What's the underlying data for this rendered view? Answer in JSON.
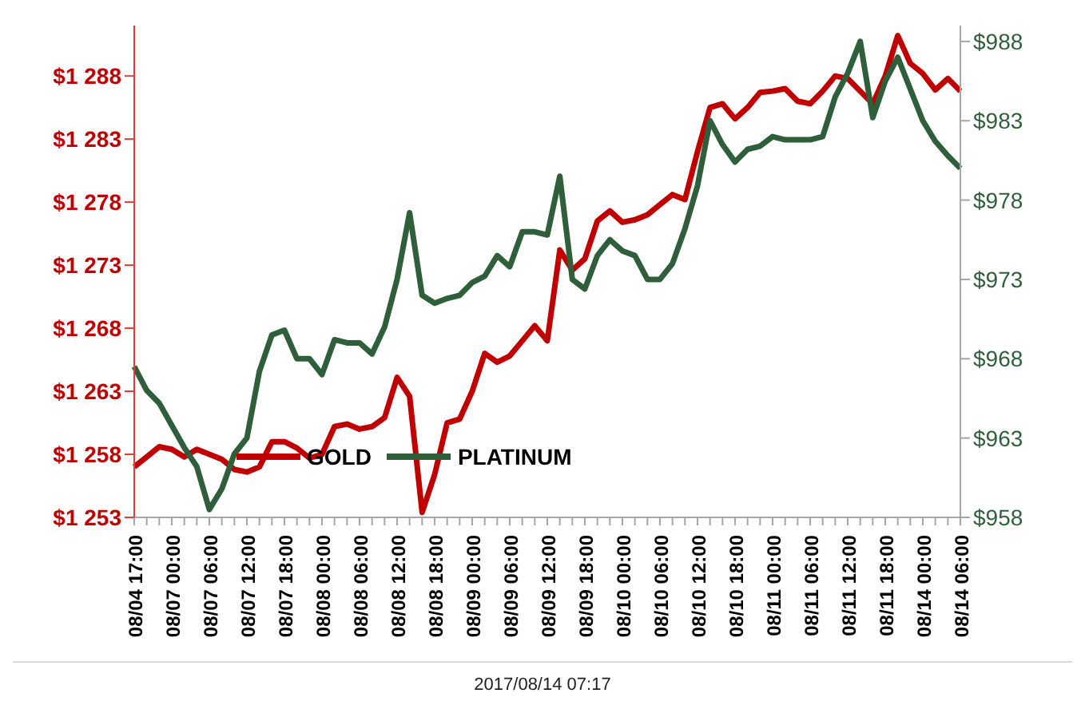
{
  "chart_data": {
    "type": "line",
    "categories": [
      "08/04 17:00",
      null,
      null,
      "08/07 00:00",
      null,
      null,
      "08/07 06:00",
      null,
      null,
      "08/07 12:00",
      null,
      null,
      "08/07 18:00",
      null,
      null,
      "08/08 00:00",
      null,
      null,
      "08/08 06:00",
      null,
      null,
      "08/08 12:00",
      null,
      null,
      "08/08 18:00",
      null,
      null,
      "08/09 00:00",
      null,
      null,
      "08/09 06:00",
      null,
      null,
      "08/09 12:00",
      null,
      null,
      "08/09 18:00",
      null,
      null,
      "08/10 00:00",
      null,
      null,
      "08/10 06:00",
      null,
      null,
      "08/10 12:00",
      null,
      null,
      "08/10 18:00",
      null,
      null,
      "08/11 00:00",
      null,
      null,
      "08/11 06:00",
      null,
      null,
      "08/11 12:00",
      null,
      null,
      "08/11 18:00",
      null,
      null,
      "08/14 00:00",
      null,
      null,
      "08/14 06:00"
    ],
    "series": [
      {
        "name": "GOLD",
        "color": "#c00000",
        "values": [
          1257.0,
          1257.8,
          1258.6,
          1258.4,
          1257.8,
          1258.4,
          1258.0,
          1257.6,
          1256.8,
          1256.6,
          1257.0,
          1259.0,
          1259.0,
          1258.5,
          1257.7,
          1258.0,
          1260.2,
          1260.4,
          1260.0,
          1260.2,
          1260.9,
          1264.1,
          1262.6,
          1253.4,
          1256.4,
          1260.5,
          1260.8,
          1263.0,
          1266.0,
          1265.3,
          1265.8,
          1267.0,
          1268.2,
          1267.0,
          1274.2,
          1272.6,
          1273.5,
          1276.5,
          1277.3,
          1276.4,
          1276.6,
          1277.0,
          1277.8,
          1278.6,
          1278.2,
          1282.0,
          1285.5,
          1285.8,
          1284.6,
          1285.5,
          1286.7,
          1286.8,
          1287.0,
          1286.0,
          1285.8,
          1286.8,
          1288.0,
          1287.8,
          1286.8,
          1285.8,
          1288.0,
          1291.2,
          1289.0,
          1288.2,
          1286.9,
          1287.8,
          1286.8
        ]
      },
      {
        "name": "PLATINUM",
        "color": "#2e5e3a",
        "axis": "y2",
        "values": [
          967.5,
          966.0,
          965.2,
          963.8,
          962.4,
          961.2,
          958.5,
          959.8,
          962.0,
          963.0,
          967.2,
          969.5,
          969.8,
          968.0,
          968.0,
          967.0,
          969.2,
          969.0,
          969.0,
          968.3,
          970.0,
          973.0,
          977.2,
          972.0,
          971.5,
          971.8,
          972.0,
          972.8,
          973.2,
          974.5,
          973.8,
          976.0,
          976.0,
          975.8,
          979.5,
          973.0,
          972.4,
          974.5,
          975.5,
          974.8,
          974.5,
          973.0,
          973.0,
          974.0,
          976.2,
          978.9,
          983.0,
          981.5,
          980.4,
          981.2,
          981.4,
          982.0,
          981.8,
          981.8,
          981.8,
          982.0,
          984.5,
          986.0,
          988.0,
          983.2,
          985.5,
          987.0,
          985.0,
          983.0,
          981.7,
          980.8,
          980.0
        ]
      }
    ],
    "ylim": [
      1253,
      1292
    ],
    "yticks": [
      {
        "value": 1253,
        "label": "$1 253"
      },
      {
        "value": 1258,
        "label": "$1 258"
      },
      {
        "value": 1263,
        "label": "$1 263"
      },
      {
        "value": 1268,
        "label": "$1 268"
      },
      {
        "value": 1273,
        "label": "$1 273"
      },
      {
        "value": 1278,
        "label": "$1 278"
      },
      {
        "value": 1283,
        "label": "$1 283"
      },
      {
        "value": 1288,
        "label": "$1 288"
      }
    ],
    "y2lim": [
      958,
      989
    ],
    "y2ticks": [
      {
        "value": 958,
        "label": "$958"
      },
      {
        "value": 963,
        "label": "$963"
      },
      {
        "value": 968,
        "label": "$968"
      },
      {
        "value": 973,
        "label": "$973"
      },
      {
        "value": 978,
        "label": "$978"
      },
      {
        "value": 983,
        "label": "$983"
      },
      {
        "value": 988,
        "label": "$988"
      }
    ],
    "legend": "bottom left",
    "grid": false,
    "marker": "none",
    "line_style": "solid",
    "annotations": [
      "2017/08/14 07:17"
    ]
  }
}
